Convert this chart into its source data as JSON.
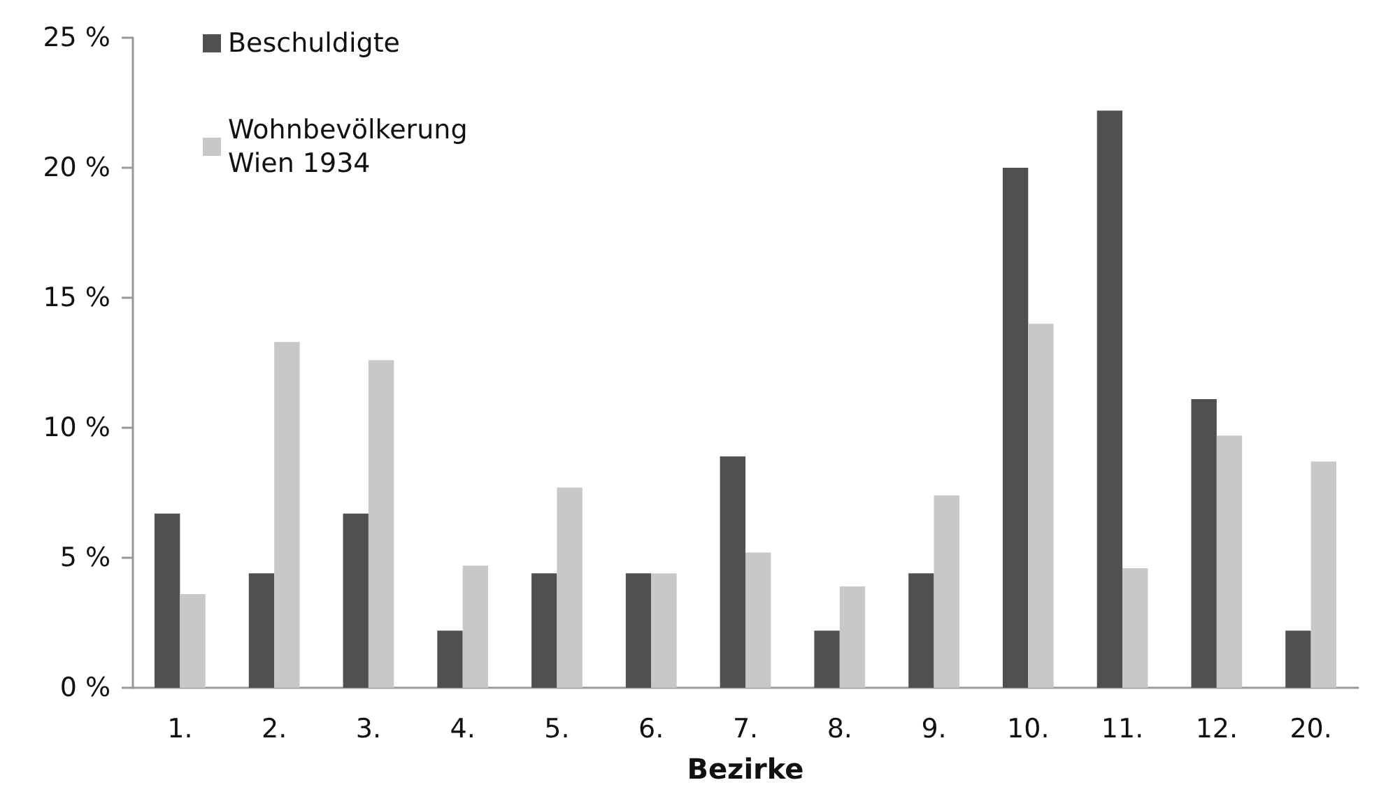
{
  "chart_data": {
    "type": "bar",
    "xlabel": "Bezirke",
    "categories": [
      "1.",
      "2.",
      "3.",
      "4.",
      "5.",
      "6.",
      "7.",
      "8.",
      "9.",
      "10.",
      "11.",
      "12.",
      "20."
    ],
    "series": [
      {
        "name": "Beschuldigte",
        "color": "#505050",
        "values": [
          6.7,
          4.4,
          6.7,
          2.2,
          4.4,
          4.4,
          8.9,
          2.2,
          4.4,
          20,
          22.2,
          11.1,
          2.2
        ]
      },
      {
        "name": "Wohnbevölkerung\nWien 1934",
        "color": "#c8c8c8",
        "values": [
          3.6,
          13.3,
          12.6,
          4.7,
          7.7,
          4.4,
          5.2,
          3.9,
          7.4,
          14,
          4.6,
          9.7,
          8.7
        ]
      }
    ],
    "ylim": [
      0,
      25
    ],
    "yticks": [
      {
        "value": 0,
        "label": "0 %"
      },
      {
        "value": 5,
        "label": "5 %"
      },
      {
        "value": 10,
        "label": "10 %"
      },
      {
        "value": 15,
        "label": "15 %"
      },
      {
        "value": 20,
        "label": "20 %"
      },
      {
        "value": 25,
        "label": "25 %"
      }
    ],
    "grid": false,
    "legend": "top left"
  }
}
